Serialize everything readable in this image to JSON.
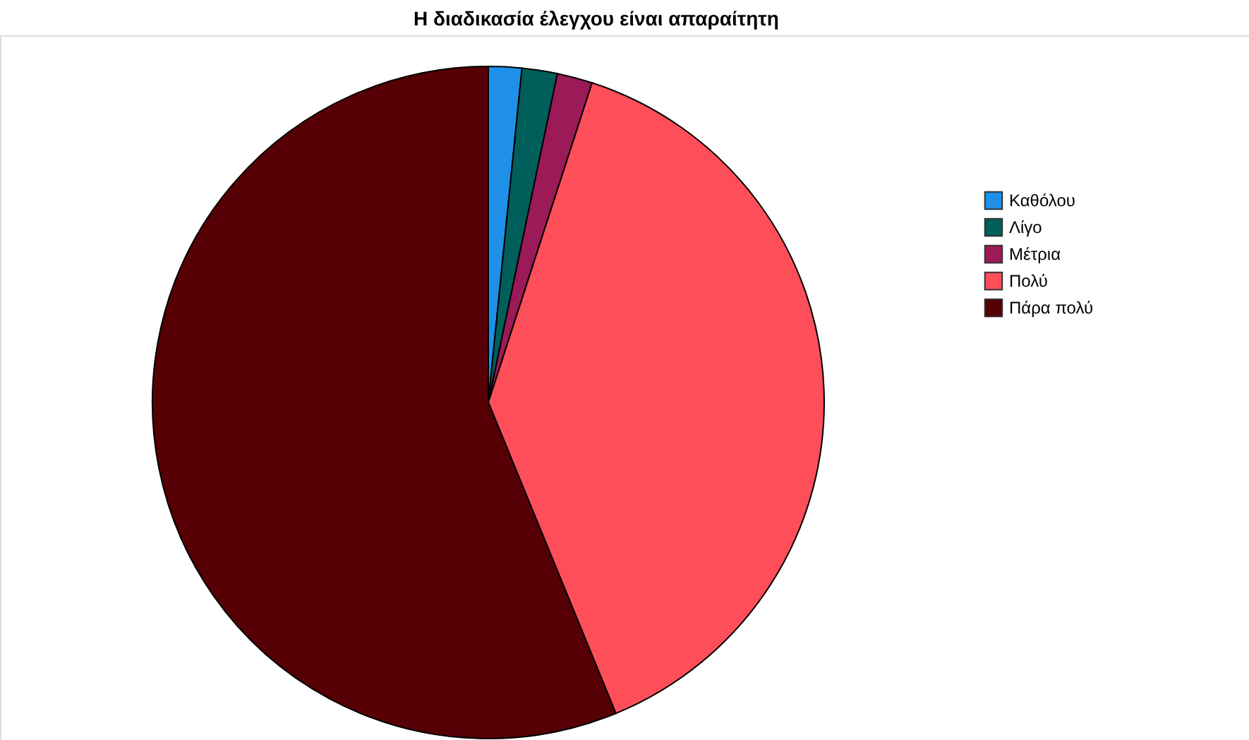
{
  "chart_data": {
    "type": "pie",
    "title": "Η διαδικασία έλεγχου είναι απαραίτητη",
    "categories": [
      "Καθόλου",
      "Λίγο",
      "Μέτρια",
      "Πολύ",
      "Πάρα πολύ"
    ],
    "values": [
      1.6,
      1.7,
      1.7,
      38.8,
      56.2
    ],
    "colors": [
      "#1e90e8",
      "#005f5a",
      "#9c1a58",
      "#fd4e5a",
      "#560006"
    ],
    "legend": "top right"
  }
}
